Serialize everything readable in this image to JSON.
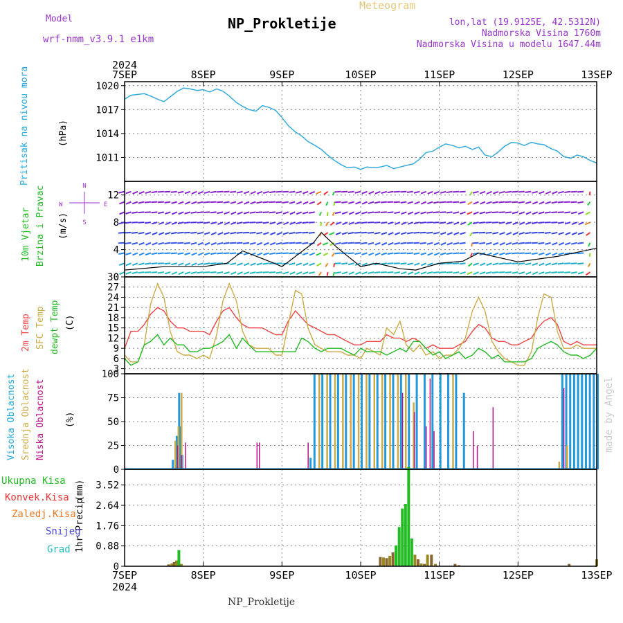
{
  "header": {
    "model_label": "Model",
    "model_name": "wrf-nmm_v3.9.1 e1km",
    "title": "NP_Prokletije",
    "meteogram": "Meteogram",
    "lonlat": "lon,lat (19.9125E, 42.5312N)",
    "altitude": "Nadmorska Visina 1760m",
    "model_altitude": "Nadmorska Visina u modelu 1647.44m",
    "year_top": "2024",
    "year_bottom": "2024",
    "footer": "NP_Prokletije",
    "watermark": "made by Angel"
  },
  "colors": {
    "pressure": "#33aadd",
    "temp2m": "#ee4444",
    "sfc": "#ccaa44",
    "dewpt": "#22bb22",
    "high": "#2299dd",
    "mid": "#ccaa44",
    "low": "#bb1188",
    "total": "#22bb22",
    "convective": "#ee3333",
    "frozen": "#ee7722",
    "snow": "#4444dd",
    "hail": "#22bbbb"
  },
  "chart_data": [
    {
      "type": "line",
      "panel": "pressure",
      "ylabel": "Pritisak na nivou mora",
      "unit": "(hPa)",
      "x_ticks": [
        "7SEP",
        "8SEP",
        "9SEP",
        "10SEP",
        "11SEP",
        "12SEP",
        "13SEP"
      ],
      "ylim": [
        1008,
        1020.5
      ],
      "y_ticks": [
        1011,
        1014,
        1017,
        1020
      ],
      "x": [
        0,
        0.08,
        0.17,
        0.25,
        0.33,
        0.42,
        0.5,
        0.58,
        0.67,
        0.75,
        0.83,
        0.92,
        1.0,
        1.08,
        1.17,
        1.25,
        1.33,
        1.42,
        1.5,
        1.58,
        1.67,
        1.75,
        1.83,
        1.92,
        2.0,
        2.08,
        2.17,
        2.25,
        2.33,
        2.42,
        2.5,
        2.58,
        2.67,
        2.75,
        2.83,
        2.92,
        3.0,
        3.08,
        3.17,
        3.25,
        3.33,
        3.42,
        3.5,
        3.58,
        3.67,
        3.75,
        3.83,
        3.92,
        4.0,
        4.08,
        4.17,
        4.25,
        4.33,
        4.42,
        4.5,
        4.58,
        4.67,
        4.75,
        4.83,
        4.92,
        5.0,
        5.08,
        5.17,
        5.25,
        5.33,
        5.42,
        5.5,
        5.58,
        5.67,
        5.75,
        5.83,
        5.92,
        6.0
      ],
      "values": [
        1018.3,
        1018.8,
        1018.9,
        1019.0,
        1018.7,
        1018.3,
        1018.0,
        1018.6,
        1019.3,
        1019.7,
        1019.6,
        1019.4,
        1019.5,
        1019.2,
        1019.6,
        1019.3,
        1018.7,
        1017.9,
        1017.4,
        1017.0,
        1016.8,
        1017.5,
        1017.3,
        1016.9,
        1016.0,
        1015.0,
        1014.2,
        1013.7,
        1013.0,
        1012.5,
        1012.0,
        1011.3,
        1010.6,
        1010.1,
        1009.7,
        1009.8,
        1009.5,
        1009.8,
        1009.7,
        1009.8,
        1010.0,
        1009.6,
        1009.8,
        1010.0,
        1010.2,
        1010.8,
        1011.6,
        1011.8,
        1012.3,
        1012.7,
        1012.5,
        1012.2,
        1012.4,
        1012.0,
        1012.3,
        1011.3,
        1011.1,
        1011.7,
        1012.4,
        1012.9,
        1012.8,
        1012.5,
        1012.9,
        1012.7,
        1012.6,
        1012.1,
        1011.8,
        1011.1,
        1010.9,
        1011.3,
        1011.1,
        1010.6,
        1010.3
      ]
    },
    {
      "type": "line",
      "panel": "wind",
      "ylabel": "10m Vjetar",
      "ylabel2": "Brzina i Pravac",
      "unit": "(m/s)",
      "compass": {
        "n": "N",
        "s": "S",
        "e": "E",
        "w": "W"
      },
      "ylim": [
        0,
        14
      ],
      "y_ticks": [
        0,
        4,
        8,
        12
      ],
      "x": [
        0,
        0.5,
        1.0,
        1.3,
        1.5,
        1.9,
        2.0,
        2.4,
        2.5,
        2.7,
        3.0,
        3.2,
        3.5,
        3.7,
        4.0,
        4.3,
        4.5,
        5.0,
        5.5,
        6.0
      ],
      "values": [
        1.0,
        1.5,
        1.5,
        2.0,
        3.8,
        2.0,
        1.5,
        5.0,
        6.5,
        4.3,
        1.5,
        2.0,
        1.2,
        1.0,
        2.0,
        2.3,
        3.5,
        2.2,
        3.0,
        4.2
      ]
    },
    {
      "type": "line",
      "panel": "temperature",
      "ylabel": "2m Temp",
      "ylabel2": "SFC Temp",
      "ylabel3": "dewpt Temp",
      "unit": "(C)",
      "ylim": [
        1.5,
        30
      ],
      "y_ticks": [
        3,
        6,
        9,
        12,
        15,
        18,
        21,
        24,
        27,
        30
      ],
      "x": [
        0,
        0.08,
        0.17,
        0.25,
        0.33,
        0.42,
        0.5,
        0.58,
        0.67,
        0.75,
        0.83,
        0.92,
        1.0,
        1.08,
        1.17,
        1.25,
        1.33,
        1.42,
        1.5,
        1.58,
        1.67,
        1.75,
        1.83,
        1.92,
        2.0,
        2.08,
        2.17,
        2.25,
        2.33,
        2.42,
        2.5,
        2.58,
        2.67,
        2.75,
        2.83,
        2.92,
        3.0,
        3.08,
        3.17,
        3.25,
        3.33,
        3.42,
        3.5,
        3.58,
        3.67,
        3.75,
        3.83,
        3.92,
        4.0,
        4.08,
        4.17,
        4.25,
        4.33,
        4.42,
        4.5,
        4.58,
        4.67,
        4.75,
        4.83,
        4.92,
        5.0,
        5.08,
        5.17,
        5.25,
        5.33,
        5.42,
        5.5,
        5.58,
        5.67,
        5.75,
        5.83,
        5.92,
        6.0
      ],
      "series": [
        {
          "name": "2m Temp",
          "values": [
            9,
            14,
            14,
            16,
            19,
            21,
            20,
            17,
            15,
            15,
            14,
            14,
            14,
            13,
            17,
            20,
            21,
            18,
            16,
            15,
            15,
            15,
            14,
            13,
            13,
            17,
            20,
            18,
            16,
            15,
            14,
            13,
            13,
            12,
            11,
            10,
            10,
            11,
            11,
            11,
            13,
            12,
            12,
            11,
            12,
            11,
            9,
            10,
            9,
            9,
            9,
            10,
            11,
            14,
            16,
            15,
            12,
            11,
            11,
            10,
            10,
            11,
            12,
            15,
            17,
            18,
            16,
            11,
            10,
            11,
            10,
            10,
            10
          ]
        },
        {
          "name": "SFC Temp",
          "values": [
            7,
            5,
            5,
            10,
            22,
            28,
            24,
            14,
            8,
            7,
            7,
            6,
            7,
            6,
            13,
            23,
            28,
            23,
            14,
            10,
            9,
            9,
            9,
            7,
            7,
            16,
            26,
            25,
            15,
            10,
            9,
            8,
            8,
            8,
            7,
            7,
            6,
            9,
            8,
            7,
            15,
            13,
            17,
            10,
            8,
            10,
            7,
            8,
            6,
            7,
            7,
            9,
            12,
            20,
            24,
            20,
            11,
            8,
            6,
            5,
            4,
            4,
            8,
            18,
            25,
            24,
            14,
            9,
            9,
            10,
            9,
            9,
            9
          ]
        },
        {
          "name": "dewpt Temp",
          "values": [
            6,
            4,
            5,
            10,
            11,
            13,
            10,
            12,
            10,
            10,
            8,
            8,
            9,
            9,
            10,
            11,
            13,
            9,
            12,
            10,
            8,
            8,
            8,
            8,
            8,
            8,
            8,
            12,
            11,
            9,
            8,
            9,
            9,
            9,
            8,
            7,
            9,
            8,
            8,
            8,
            7,
            8,
            9,
            8,
            11,
            11,
            9,
            7,
            8,
            6,
            7,
            8,
            6,
            7,
            9,
            8,
            6,
            7,
            5,
            5,
            5,
            5,
            6,
            9,
            10,
            11,
            10,
            8,
            7,
            7,
            6,
            7,
            9
          ]
        }
      ]
    },
    {
      "type": "bar",
      "panel": "cloud",
      "ylabel": "Visoka Oblacnost",
      "ylabel2": "Srednja Oblacnost",
      "ylabel3": "Niska Oblacnost",
      "unit": "(%)",
      "ylim": [
        0,
        100
      ],
      "y_ticks": [
        0,
        25,
        50,
        75,
        100
      ],
      "series": [
        {
          "name": "Visoka Oblacnost",
          "x": [
            0.6,
            0.65,
            0.68,
            0.7,
            0.72,
            2.35,
            2.4,
            2.5,
            2.6,
            2.7,
            2.8,
            2.9,
            3.0,
            3.1,
            3.2,
            3.3,
            3.4,
            3.5,
            3.6,
            3.7,
            3.8,
            3.9,
            4.0,
            4.1,
            4.2,
            4.3,
            5.55,
            5.6,
            5.65,
            5.7,
            5.75,
            5.8,
            5.85,
            5.9,
            5.95,
            6.0
          ],
          "values": [
            10,
            35,
            80,
            45,
            15,
            12,
            100,
            100,
            100,
            100,
            100,
            100,
            100,
            100,
            100,
            100,
            100,
            100,
            100,
            100,
            100,
            100,
            100,
            100,
            100,
            80,
            100,
            100,
            100,
            100,
            100,
            100,
            100,
            100,
            100,
            100
          ]
        },
        {
          "name": "Srednja Oblacnost",
          "x": [
            0.62,
            0.66,
            0.7,
            2.45,
            2.55,
            2.65,
            2.75,
            2.85,
            2.95,
            3.05,
            3.15,
            3.25,
            3.35,
            3.45,
            3.55,
            3.65,
            4.15,
            5.5,
            5.6
          ],
          "values": [
            30,
            45,
            80,
            100,
            100,
            100,
            100,
            100,
            100,
            100,
            100,
            100,
            100,
            100,
            100,
            70,
            100,
            8,
            25
          ]
        },
        {
          "name": "Niska Oblacnost",
          "x": [
            0.64,
            0.69,
            0.74,
            1.65,
            1.68,
            2.3,
            3.5,
            3.65,
            3.8,
            3.85,
            3.9,
            4.4,
            4.45,
            4.65,
            5.55
          ],
          "values": [
            25,
            15,
            28,
            28,
            28,
            28,
            80,
            60,
            45,
            95,
            40,
            40,
            25,
            65,
            85
          ]
        }
      ]
    },
    {
      "type": "bar",
      "panel": "precip",
      "ylabel": "1hr Precip",
      "unit": "(mm)",
      "ylim": [
        0,
        4.2
      ],
      "y_ticks": [
        "0",
        "0.88",
        "1.76",
        "2.64",
        "3.52"
      ],
      "legend": [
        "Ukupna Kisa",
        "Konvek.Kisa",
        "Zaledj.Kisa",
        "Snijeg",
        "Grad"
      ],
      "x": [
        0.56,
        0.6,
        0.63,
        0.66,
        0.69,
        0.72,
        3.25,
        3.29,
        3.33,
        3.37,
        3.41,
        3.45,
        3.49,
        3.53,
        3.57,
        3.61,
        3.65,
        3.69,
        3.73,
        3.77,
        3.81,
        3.85,
        3.9,
        3.95,
        4.2,
        4.25,
        5.65,
        6.0
      ],
      "values": [
        0.08,
        0.12,
        0.18,
        0.25,
        0.7,
        0.1,
        0.4,
        0.38,
        0.35,
        0.45,
        0.6,
        0.9,
        1.7,
        2.5,
        2.7,
        4.3,
        1.2,
        0.5,
        0.3,
        0.12,
        0.1,
        0.5,
        0.5,
        0.1,
        0.1,
        0.05,
        0.1,
        0.3
      ]
    }
  ]
}
